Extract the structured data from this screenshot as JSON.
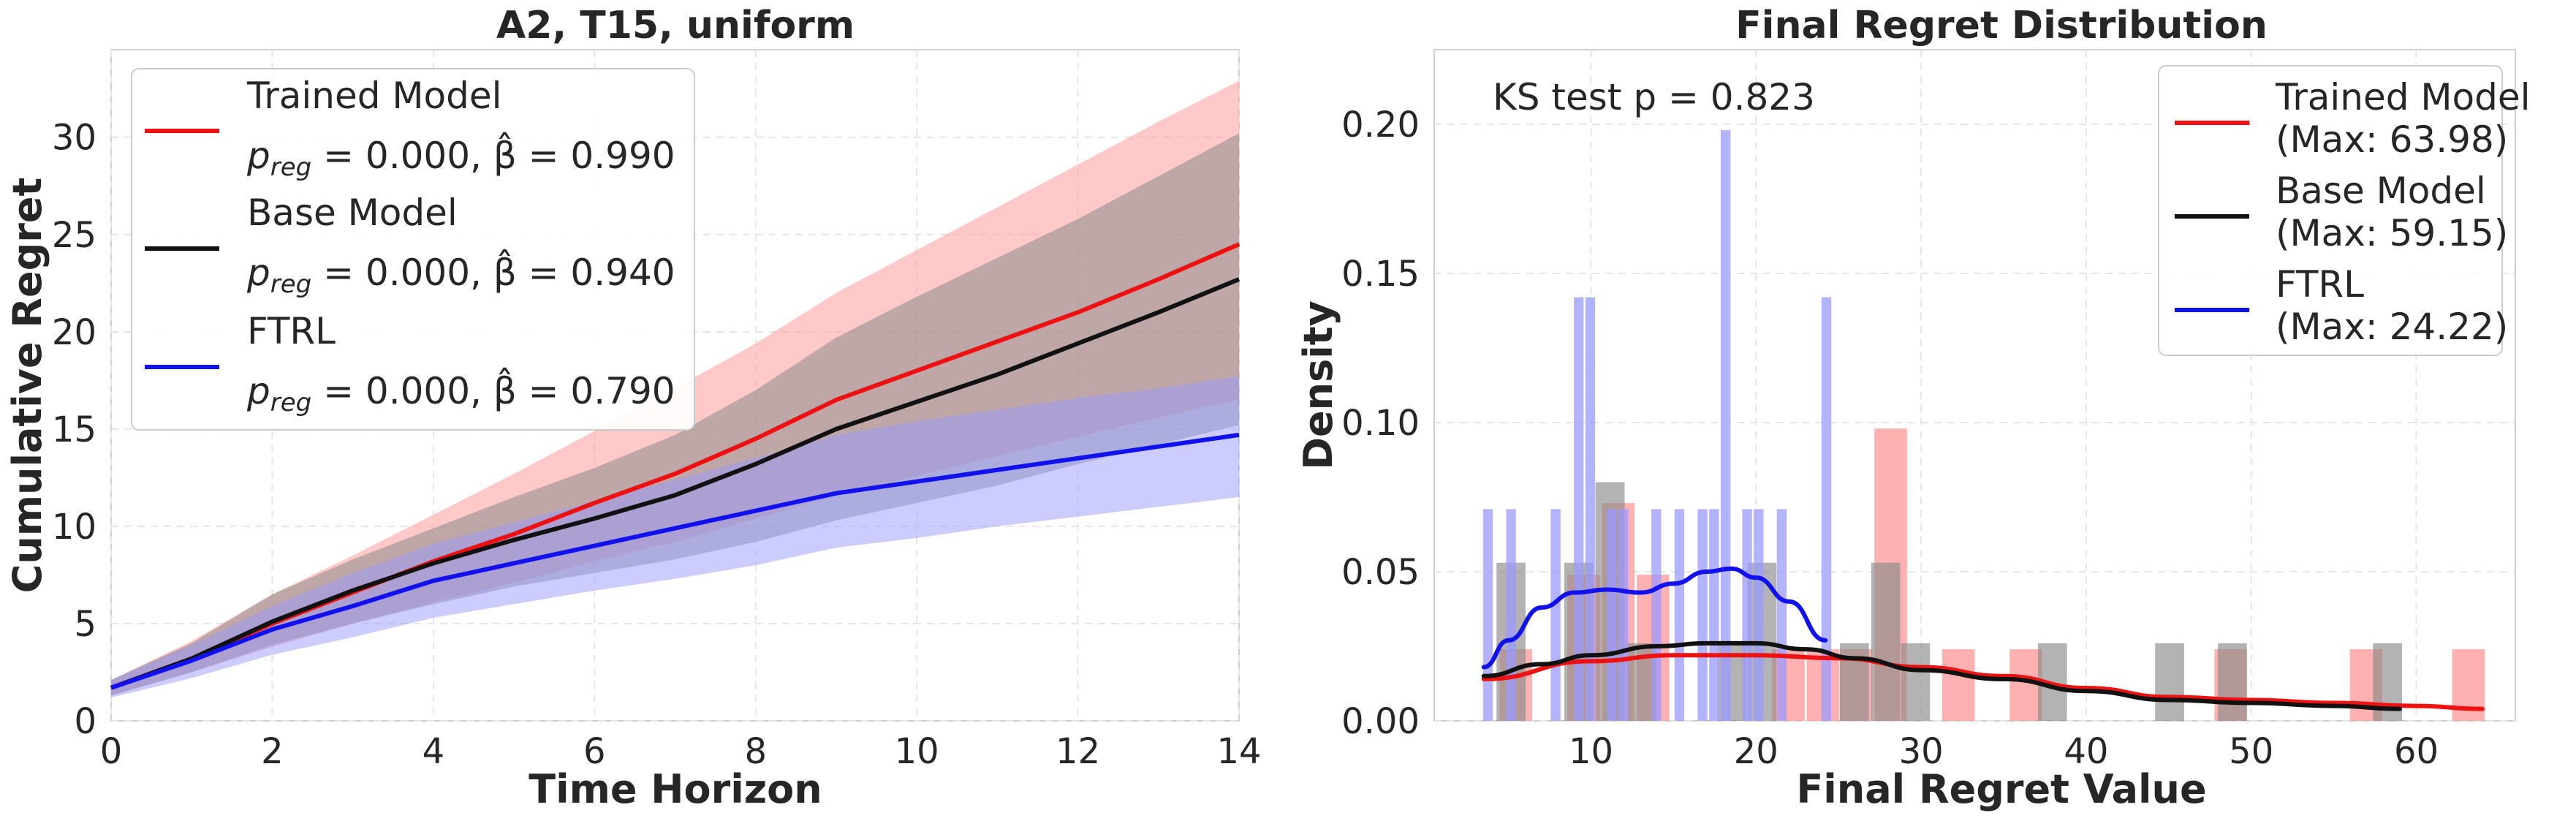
{
  "colors": {
    "trained": "#ee1111",
    "base": "#111111",
    "ftrl": "#1111ee",
    "trained_fill": "#ff9d9d",
    "base_fill": "#8a8a8a",
    "ftrl_fill": "#9a9aff",
    "grid": "#e6e6e6",
    "frame": "#d0d0d0"
  },
  "chart_data": [
    {
      "type": "line",
      "title": "A2, T15, uniform",
      "xlabel": "Time Horizon",
      "ylabel": "Cumulative Regret",
      "xlim": [
        0,
        14
      ],
      "ylim": [
        0,
        34.5
      ],
      "xticks": [
        "0",
        "2",
        "4",
        "6",
        "8",
        "10",
        "12",
        "14"
      ],
      "yticks": [
        "0",
        "5",
        "10",
        "15",
        "20",
        "25",
        "30"
      ],
      "grid": true,
      "legend_position": "upper-left",
      "x": [
        0,
        1,
        2,
        3,
        4,
        5,
        6,
        7,
        8,
        9,
        10,
        11,
        12,
        13,
        14
      ],
      "series": [
        {
          "name": "Trained Model",
          "stat": "p_reg = 0.000, β̂ = 0.990",
          "color_key": "trained",
          "values": [
            1.7,
            3.2,
            5.0,
            6.6,
            8.2,
            9.6,
            11.2,
            12.7,
            14.5,
            16.5,
            18.0,
            19.5,
            21.0,
            22.7,
            24.5
          ],
          "lower": [
            1.3,
            2.5,
            3.8,
            5.0,
            6.1,
            7.1,
            8.2,
            9.2,
            10.4,
            11.6,
            12.6,
            13.6,
            14.6,
            15.6,
            16.5
          ],
          "upper": [
            2.1,
            4.1,
            6.5,
            8.5,
            10.6,
            12.7,
            14.9,
            17.1,
            19.4,
            22.0,
            24.2,
            26.4,
            28.6,
            30.8,
            32.9
          ]
        },
        {
          "name": "Base Model",
          "stat": "p_reg = 0.000, β̂ = 0.940",
          "color_key": "base",
          "values": [
            1.7,
            3.2,
            5.1,
            6.7,
            8.1,
            9.3,
            10.4,
            11.6,
            13.2,
            15.0,
            16.4,
            17.8,
            19.4,
            21.0,
            22.7
          ],
          "lower": [
            1.3,
            2.5,
            3.9,
            5.0,
            6.0,
            6.9,
            7.6,
            8.3,
            9.2,
            10.3,
            11.2,
            12.1,
            13.2,
            14.2,
            15.2
          ],
          "upper": [
            2.1,
            4.0,
            6.5,
            8.3,
            9.9,
            11.5,
            13.0,
            14.7,
            17.0,
            19.7,
            21.8,
            23.8,
            25.8,
            28.0,
            30.2
          ]
        },
        {
          "name": "FTRL",
          "stat": "p_reg = 0.000, β̂ = 0.790",
          "color_key": "ftrl",
          "values": [
            1.7,
            3.1,
            4.7,
            5.9,
            7.2,
            8.1,
            9.0,
            9.9,
            10.8,
            11.7,
            12.3,
            12.9,
            13.5,
            14.1,
            14.7
          ],
          "lower": [
            1.2,
            2.2,
            3.4,
            4.3,
            5.3,
            6.0,
            6.7,
            7.3,
            8.0,
            8.9,
            9.4,
            10.0,
            10.5,
            11.0,
            11.5
          ],
          "upper": [
            2.1,
            3.9,
            5.9,
            7.6,
            9.1,
            10.2,
            11.3,
            12.4,
            13.5,
            14.7,
            15.4,
            16.0,
            16.6,
            17.1,
            17.7
          ]
        }
      ]
    },
    {
      "type": "bar",
      "title": "Final Regret Distribution",
      "xlabel": "Final Regret Value",
      "ylabel": "Density",
      "xlim": [
        0.5,
        66
      ],
      "ylim": [
        0,
        0.225
      ],
      "xticks": [
        "10",
        "20",
        "30",
        "40",
        "50",
        "60"
      ],
      "yticks": [
        "0.00",
        "0.05",
        "0.10",
        "0.15",
        "0.20"
      ],
      "grid": true,
      "legend_position": "upper-right",
      "annotation": "KS test p = 0.823",
      "series": [
        {
          "name": "Trained Model",
          "max_label": "(Max: 63.98)",
          "color_key": "trained",
          "bin_width": 2.06,
          "bins": [
            {
              "x": 3.5,
              "v": 0.0
            },
            {
              "x": 5.5,
              "v": 0.024
            },
            {
              "x": 9.6,
              "v": 0.049
            },
            {
              "x": 11.7,
              "v": 0.073
            },
            {
              "x": 13.8,
              "v": 0.049
            },
            {
              "x": 22.0,
              "v": 0.024
            },
            {
              "x": 24.1,
              "v": 0.024
            },
            {
              "x": 26.1,
              "v": 0.024
            },
            {
              "x": 28.2,
              "v": 0.098
            },
            {
              "x": 32.3,
              "v": 0.024
            },
            {
              "x": 36.4,
              "v": 0.024
            },
            {
              "x": 48.8,
              "v": 0.024
            },
            {
              "x": 57.0,
              "v": 0.024
            },
            {
              "x": 63.2,
              "v": 0.024
            }
          ],
          "kde_x": [
            3.5,
            10,
            15,
            20,
            25,
            30,
            35,
            40,
            45,
            50,
            55,
            60,
            64
          ],
          "kde_y": [
            0.014,
            0.02,
            0.022,
            0.022,
            0.021,
            0.018,
            0.015,
            0.011,
            0.008,
            0.007,
            0.006,
            0.005,
            0.004
          ]
        },
        {
          "name": "Base Model",
          "max_label": "(Max: 59.15)",
          "color_key": "base",
          "bin_width": 1.85,
          "bins": [
            {
              "x": 5.2,
              "v": 0.053
            },
            {
              "x": 9.3,
              "v": 0.053
            },
            {
              "x": 11.2,
              "v": 0.08
            },
            {
              "x": 13.1,
              "v": 0.026
            },
            {
              "x": 18.6,
              "v": 0.026
            },
            {
              "x": 20.4,
              "v": 0.053
            },
            {
              "x": 26.0,
              "v": 0.026
            },
            {
              "x": 27.9,
              "v": 0.053
            },
            {
              "x": 29.7,
              "v": 0.026
            },
            {
              "x": 38.0,
              "v": 0.026
            },
            {
              "x": 45.1,
              "v": 0.026
            },
            {
              "x": 48.9,
              "v": 0.026
            },
            {
              "x": 58.3,
              "v": 0.026
            }
          ],
          "kde_x": [
            3.5,
            7,
            10,
            14,
            17,
            20,
            23,
            26,
            30,
            35,
            40,
            45,
            50,
            55,
            59
          ],
          "kde_y": [
            0.015,
            0.019,
            0.022,
            0.025,
            0.026,
            0.026,
            0.024,
            0.021,
            0.017,
            0.014,
            0.01,
            0.007,
            0.006,
            0.005,
            0.004
          ]
        },
        {
          "name": "FTRL",
          "max_label": "(Max: 24.22)",
          "color_key": "ftrl",
          "bin_width": 0.68,
          "bins": [
            {
              "x": 3.8,
              "v": 0.071
            },
            {
              "x": 5.2,
              "v": 0.071
            },
            {
              "x": 7.9,
              "v": 0.071
            },
            {
              "x": 9.3,
              "v": 0.142
            },
            {
              "x": 10.0,
              "v": 0.142
            },
            {
              "x": 11.3,
              "v": 0.071
            },
            {
              "x": 12.0,
              "v": 0.071
            },
            {
              "x": 14.0,
              "v": 0.071
            },
            {
              "x": 15.4,
              "v": 0.071
            },
            {
              "x": 16.8,
              "v": 0.071
            },
            {
              "x": 17.5,
              "v": 0.071
            },
            {
              "x": 18.2,
              "v": 0.198
            },
            {
              "x": 19.5,
              "v": 0.071
            },
            {
              "x": 20.2,
              "v": 0.071
            },
            {
              "x": 21.6,
              "v": 0.071
            },
            {
              "x": 24.3,
              "v": 0.142
            }
          ],
          "kde_x": [
            3.5,
            5,
            7,
            9,
            11,
            13,
            15,
            17,
            18.5,
            20,
            22,
            24.2
          ],
          "kde_y": [
            0.018,
            0.027,
            0.038,
            0.043,
            0.044,
            0.043,
            0.046,
            0.05,
            0.051,
            0.048,
            0.04,
            0.027
          ]
        }
      ]
    }
  ]
}
